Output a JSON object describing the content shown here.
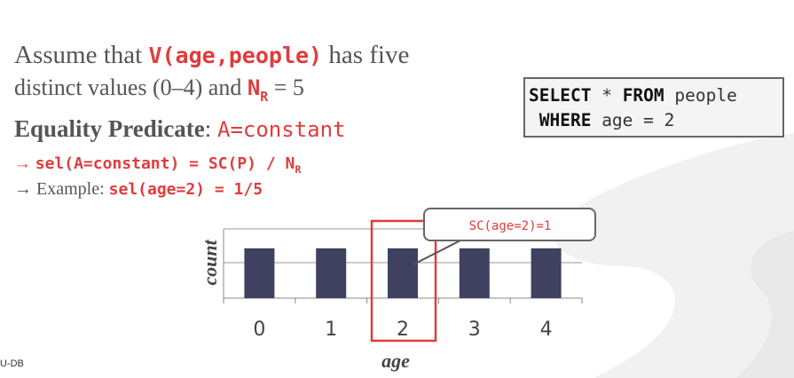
{
  "slide": {
    "line1": {
      "pre": "Assume that ",
      "code": "V(age,people)",
      "post": " has five"
    },
    "line2": {
      "pre": "distinct values (0–4) and ",
      "n": "N",
      "n_sub": "R",
      "post": " = 5"
    },
    "line3": {
      "label": "Equality Predicate",
      "sep": ": ",
      "code": "A=constant"
    },
    "line4": {
      "arrow": "→ ",
      "code": "sel(A=constant) = SC(P) / N",
      "sub": "R"
    },
    "line5": {
      "arrow": "→ Example: ",
      "code": "sel(age=2) = 1/5"
    }
  },
  "sql": {
    "line1": {
      "kw1": "SELECT",
      "mid": " * ",
      "kw2": "FROM",
      "post": " people"
    },
    "line2": {
      "pre": " ",
      "kw": "WHERE",
      "post": " age = 2"
    }
  },
  "callout": {
    "text": "SC(age=2)=1"
  },
  "footer": {
    "text": "U-DB"
  },
  "colors": {
    "accent": "#e03c3c",
    "bar": "#3e4160",
    "text": "#555555"
  },
  "chart_data": {
    "type": "bar",
    "categories": [
      "0",
      "1",
      "2",
      "3",
      "4"
    ],
    "values": [
      1,
      1,
      1,
      1,
      1
    ],
    "xlabel": "age",
    "ylabel": "count",
    "highlight": "2"
  }
}
